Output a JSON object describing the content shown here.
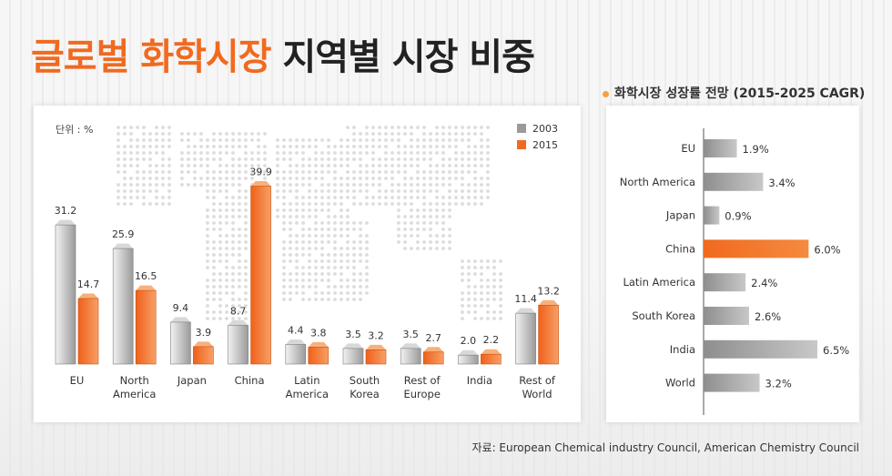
{
  "header": {
    "title_highlight": "글로벌 화학시장",
    "title_rest": " 지역별 시장 비중"
  },
  "right_header": "화학시장 성장률 전망 (2015-2025 CAGR)",
  "source": "자료: European Chemical industry Council, American Chemistry  Council",
  "colors": {
    "accent": "#f06a1f",
    "gray_bar": "#9a9a9a",
    "light_bar": "#e3e3e3"
  },
  "chart_data": [
    {
      "type": "bar",
      "unit_label": "단위 : %",
      "categories": [
        "EU",
        "North America",
        "Japan",
        "China",
        "Latin America",
        "South Korea",
        "Rest of Europe",
        "India",
        "Rest of World"
      ],
      "series": [
        {
          "name": "2003",
          "values": [
            31.2,
            25.9,
            9.4,
            8.7,
            4.4,
            3.5,
            3.5,
            2.0,
            11.4
          ]
        },
        {
          "name": "2015",
          "values": [
            14.7,
            16.5,
            3.9,
            39.9,
            3.8,
            3.2,
            2.7,
            2.2,
            13.2
          ]
        }
      ],
      "value_labels": [
        [
          "31.2",
          "25.9",
          "9.4",
          "8.7",
          "4.4",
          "3.5",
          "3.5",
          "2.0",
          "11.4"
        ],
        [
          "14.7",
          "16.5",
          "3.9",
          "39.9",
          "3.8",
          "3.2",
          "2.7",
          "2.2",
          "13.2"
        ]
      ],
      "ylim": [
        0,
        40
      ],
      "legend": "top-right"
    },
    {
      "type": "bar",
      "orientation": "horizontal",
      "categories": [
        "EU",
        "North America",
        "Japan",
        "China",
        "Latin America",
        "South Korea",
        "India",
        "World"
      ],
      "values": [
        1.9,
        3.4,
        0.9,
        6.0,
        2.4,
        2.6,
        6.5,
        3.2
      ],
      "value_labels": [
        "1.9%",
        "3.4%",
        "0.9%",
        "6.0%",
        "2.4%",
        "2.6%",
        "6.5%",
        "3.2%"
      ],
      "highlight": "China",
      "xlim": [
        0,
        7
      ]
    }
  ]
}
